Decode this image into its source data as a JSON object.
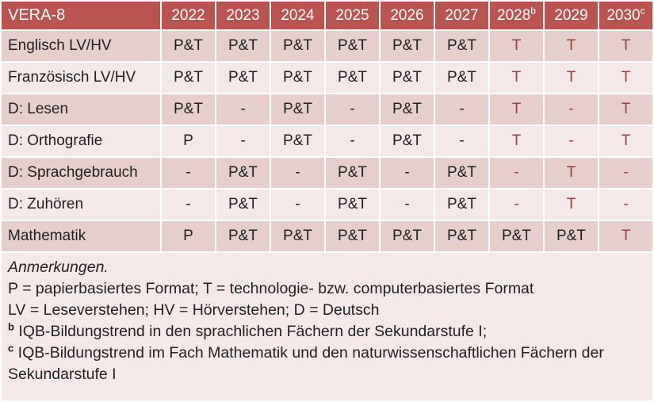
{
  "colors": {
    "header_bg": "#b95451",
    "header_text": "#ffffff",
    "band_dark": "#e6cecc",
    "band_light": "#f4e9e8",
    "accent_red": "#9c3d3a",
    "text": "#212121"
  },
  "table": {
    "title": "VERA-8",
    "columns": [
      {
        "label": "2022"
      },
      {
        "label": "2023"
      },
      {
        "label": "2024"
      },
      {
        "label": "2025"
      },
      {
        "label": "2026"
      },
      {
        "label": "2027"
      },
      {
        "label": "2028",
        "sup": "b"
      },
      {
        "label": "2029"
      },
      {
        "label": "2030",
        "sup": "c"
      }
    ],
    "rows": [
      {
        "label": "Englisch LV/HV",
        "cells": [
          {
            "t": "P&T"
          },
          {
            "t": "P&T"
          },
          {
            "t": "P&T"
          },
          {
            "t": "P&T"
          },
          {
            "t": "P&T"
          },
          {
            "t": "P&T"
          },
          {
            "t": "T",
            "red": true
          },
          {
            "t": "T",
            "red": true
          },
          {
            "t": "T",
            "red": true
          }
        ]
      },
      {
        "label": "Französisch LV/HV",
        "cells": [
          {
            "t": "P&T"
          },
          {
            "t": "P&T"
          },
          {
            "t": "P&T"
          },
          {
            "t": "P&T"
          },
          {
            "t": "P&T"
          },
          {
            "t": "P&T"
          },
          {
            "t": "T",
            "red": true
          },
          {
            "t": "T",
            "red": true
          },
          {
            "t": "T",
            "red": true
          }
        ]
      },
      {
        "label": "D: Lesen",
        "cells": [
          {
            "t": "P&T"
          },
          {
            "t": "-"
          },
          {
            "t": "P&T"
          },
          {
            "t": "-"
          },
          {
            "t": "P&T"
          },
          {
            "t": "-"
          },
          {
            "t": "T",
            "red": true
          },
          {
            "t": "-",
            "red": true
          },
          {
            "t": "T",
            "red": true
          }
        ]
      },
      {
        "label": "D: Orthografie",
        "cells": [
          {
            "t": "P"
          },
          {
            "t": "-"
          },
          {
            "t": "P&T"
          },
          {
            "t": "-"
          },
          {
            "t": "P&T"
          },
          {
            "t": "-"
          },
          {
            "t": "T",
            "red": true
          },
          {
            "t": "-",
            "red": true
          },
          {
            "t": "T",
            "red": true
          }
        ]
      },
      {
        "label": "D: Sprachgebrauch",
        "cells": [
          {
            "t": "-"
          },
          {
            "t": "P&T"
          },
          {
            "t": "-"
          },
          {
            "t": "P&T"
          },
          {
            "t": "-"
          },
          {
            "t": "P&T"
          },
          {
            "t": "-",
            "red": true
          },
          {
            "t": "T",
            "red": true
          },
          {
            "t": "-",
            "red": true
          }
        ]
      },
      {
        "label": "D: Zuhören",
        "cells": [
          {
            "t": "-"
          },
          {
            "t": "P&T"
          },
          {
            "t": "-"
          },
          {
            "t": "P&T"
          },
          {
            "t": "-"
          },
          {
            "t": "P&T"
          },
          {
            "t": "-",
            "red": true
          },
          {
            "t": "T",
            "red": true
          },
          {
            "t": "-",
            "red": true
          }
        ]
      },
      {
        "label": "Mathematik",
        "cells": [
          {
            "t": "P"
          },
          {
            "t": "P&T"
          },
          {
            "t": "P&T"
          },
          {
            "t": "P&T"
          },
          {
            "t": "P&T"
          },
          {
            "t": "P&T"
          },
          {
            "t": "P&T"
          },
          {
            "t": "P&T"
          },
          {
            "t": "T",
            "red": true
          }
        ]
      }
    ]
  },
  "notes": {
    "heading": "Anmerkungen.",
    "formats": "P = papierbasiertes Format; T = technologie- bzw. computerbasiertes Format",
    "abbreviations": "LV = Leseverstehen; HV = Hörverstehen; D = Deutsch",
    "footnote_b_marker": "b",
    "footnote_b": "IQB-Bildungstrend in den sprachlichen Fächern der Sekundarstufe I;",
    "footnote_c_marker": "c",
    "footnote_c": "IQB-Bildungstrend im Fach Mathematik und den naturwissenschaftlichen Fächern der Sekundarstufe I"
  }
}
